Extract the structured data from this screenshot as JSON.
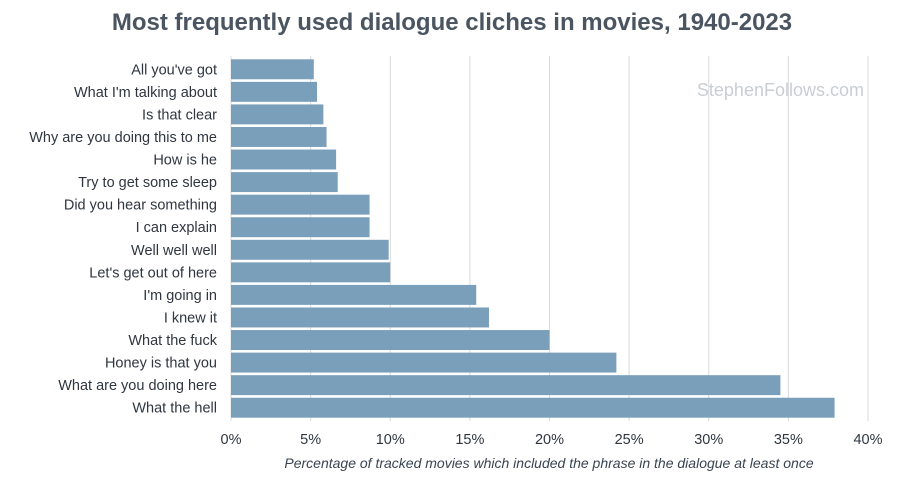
{
  "chart_data": {
    "type": "bar",
    "orientation": "horizontal",
    "title": "Most frequently used dialogue cliches in movies, 1940-2023",
    "xlabel": "Percentage of tracked movies which included the phrase in the dialogue at least once",
    "ylabel": "",
    "watermark": "StephenFollows.com",
    "categories": [
      "All you've got",
      "What I'm talking about",
      "Is that clear",
      "Why are you doing this to me",
      "How is he",
      "Try to get some sleep",
      "Did you hear something",
      "I can explain",
      "Well well well",
      "Let's get out of here",
      "I'm going in",
      "I knew it",
      "What the fuck",
      "Honey is that you",
      "What are you doing here",
      "What the hell"
    ],
    "values": [
      5.2,
      5.4,
      5.8,
      6.0,
      6.6,
      6.7,
      8.7,
      8.7,
      9.9,
      10.0,
      15.4,
      16.2,
      20.0,
      24.2,
      34.5,
      37.9
    ],
    "xlim": [
      0,
      40
    ],
    "xticks": [
      0,
      5,
      10,
      15,
      20,
      25,
      30,
      35,
      40
    ],
    "xtick_labels": [
      "0%",
      "5%",
      "10%",
      "15%",
      "20%",
      "25%",
      "30%",
      "35%",
      "40%"
    ],
    "grid": "vertical",
    "bar_color": "#7a9fba",
    "grid_color": "#d9d9d9",
    "legend": "none"
  }
}
